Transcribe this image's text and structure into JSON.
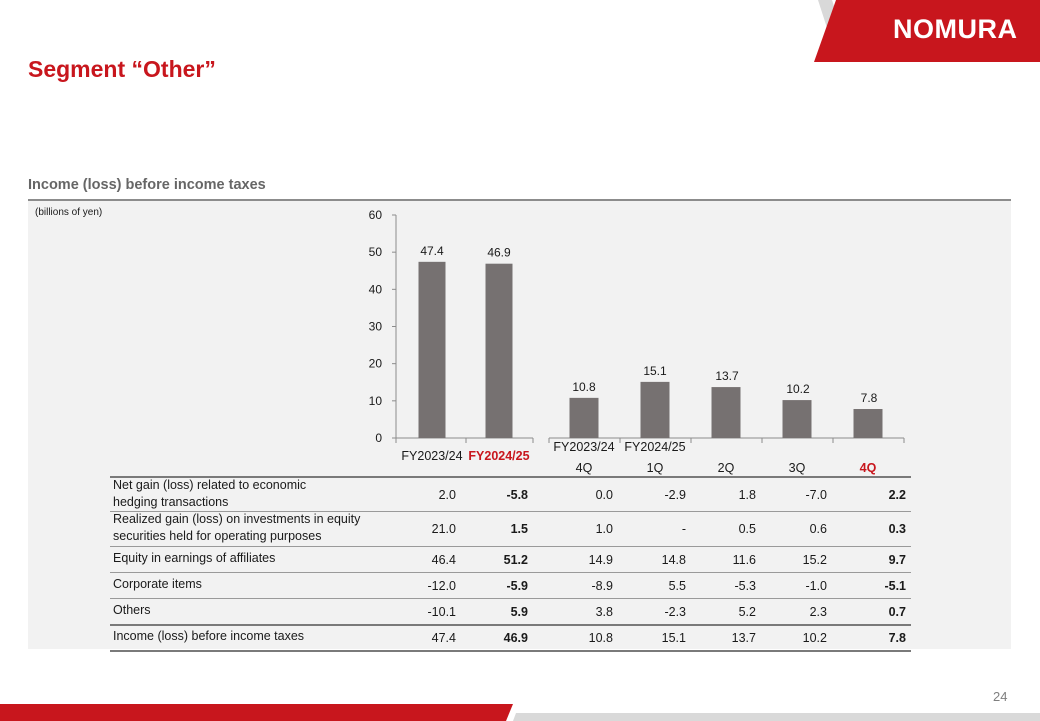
{
  "header": {
    "brand": "NOMURA",
    "title": "Segment “Other”",
    "section_title": "Income (loss) before income taxes",
    "unit_label": "(billions of yen)",
    "page_number": "24"
  },
  "colors": {
    "brand_red": "#c8161d",
    "bar_gray": "#767171",
    "panel_bg": "#f2f2f2"
  },
  "chart_data": {
    "type": "bar",
    "title": "",
    "ylim": [
      0,
      60
    ],
    "yticks": [
      0,
      10,
      20,
      30,
      40,
      50,
      60
    ],
    "groups": [
      {
        "categories": [
          {
            "label": "FY2023/24",
            "highlight": false
          },
          {
            "label": "FY2024/25",
            "highlight": true
          }
        ],
        "values": [
          47.4,
          46.9
        ]
      },
      {
        "group_label": "FY2023/24",
        "group_label_2": "FY2024/25",
        "categories": [
          {
            "label": "4Q",
            "highlight": false
          },
          {
            "label": "1Q",
            "highlight": false
          },
          {
            "label": "2Q",
            "highlight": false
          },
          {
            "label": "3Q",
            "highlight": false
          },
          {
            "label": "4Q",
            "highlight": true
          }
        ],
        "values": [
          10.8,
          15.1,
          13.7,
          10.2,
          7.8
        ]
      }
    ],
    "value_labels": [
      "47.4",
      "46.9",
      "10.8",
      "15.1",
      "13.7",
      "10.2",
      "7.8"
    ]
  },
  "table": {
    "rows": [
      {
        "label_lines": [
          "Net gain (loss) related to economic",
          "hedging transactions"
        ],
        "values": [
          "2.0",
          "-5.8",
          "0.0",
          "-2.9",
          "1.8",
          "-7.0",
          "2.2"
        ]
      },
      {
        "label_lines": [
          "Realized gain (loss) on investments in equity",
          "securities held for operating purposes"
        ],
        "values": [
          "21.0",
          "1.5",
          "1.0",
          "-",
          "0.5",
          "0.6",
          "0.3"
        ]
      },
      {
        "label_lines": [
          "Equity in earnings of affiliates"
        ],
        "values": [
          "46.4",
          "51.2",
          "14.9",
          "14.8",
          "11.6",
          "15.2",
          "9.7"
        ]
      },
      {
        "label_lines": [
          "Corporate items"
        ],
        "values": [
          "-12.0",
          "-5.9",
          "-8.9",
          "5.5",
          "-5.3",
          "-1.0",
          "-5.1"
        ]
      },
      {
        "label_lines": [
          "Others"
        ],
        "values": [
          "-10.1",
          "5.9",
          "3.8",
          "-2.3",
          "5.2",
          "2.3",
          "0.7"
        ]
      },
      {
        "label_lines": [
          "Income (loss) before income taxes"
        ],
        "values": [
          "47.4",
          "46.9",
          "10.8",
          "15.1",
          "13.7",
          "10.2",
          "7.8"
        ]
      }
    ]
  }
}
